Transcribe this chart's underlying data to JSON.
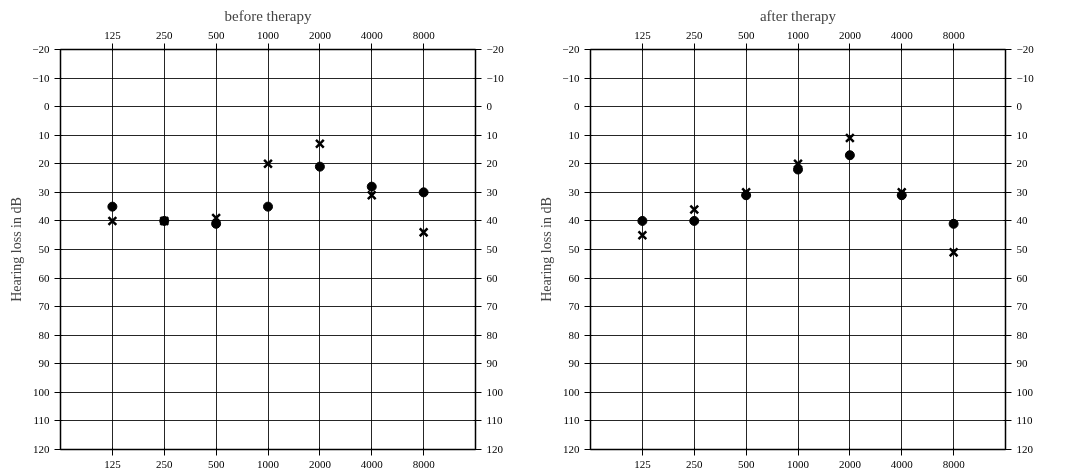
{
  "chart_data": [
    {
      "type": "scatter",
      "title": "before therapy",
      "ylabel": "Hearing loss in dB",
      "categories": [
        "125",
        "250",
        "500",
        "1000",
        "2000",
        "4000",
        "8000"
      ],
      "ylim": [
        120,
        -20
      ],
      "yticks": [
        -20,
        -10,
        0,
        10,
        20,
        30,
        40,
        50,
        60,
        70,
        80,
        90,
        100,
        110,
        120
      ],
      "y2lim": [
        120,
        -20
      ],
      "y2ticks": [
        -20,
        -10,
        0,
        10,
        20,
        30,
        40,
        50,
        60,
        70,
        80,
        90,
        100,
        110,
        120
      ],
      "grid": true,
      "series": [
        {
          "color": "#000000",
          "marker": "circle",
          "values": [
            35,
            40,
            41,
            35,
            21,
            28,
            30
          ]
        },
        {
          "color": "#000000",
          "marker": "cross",
          "values": [
            40,
            40,
            39,
            20,
            13,
            31,
            44
          ]
        }
      ]
    },
    {
      "type": "scatter",
      "title": "after therapy",
      "ylabel": "Hearing loss in dB",
      "categories": [
        "125",
        "250",
        "500",
        "1000",
        "2000",
        "4000",
        "8000"
      ],
      "ylim": [
        120,
        -20
      ],
      "yticks": [
        -20,
        -10,
        0,
        10,
        20,
        30,
        40,
        50,
        60,
        70,
        80,
        90,
        100,
        110,
        120
      ],
      "y2lim": [
        120,
        -20
      ],
      "y2ticks": [
        -20,
        -10,
        0,
        10,
        20,
        30,
        40,
        50,
        60,
        70,
        80,
        90,
        100,
        110,
        120
      ],
      "grid": true,
      "series": [
        {
          "color": "#000000",
          "marker": "circle",
          "values": [
            40,
            40,
            31,
            22,
            17,
            31,
            41
          ]
        },
        {
          "color": "#000000",
          "marker": "cross",
          "values": [
            45,
            36,
            30,
            20,
            11,
            30,
            51
          ]
        }
      ]
    }
  ]
}
